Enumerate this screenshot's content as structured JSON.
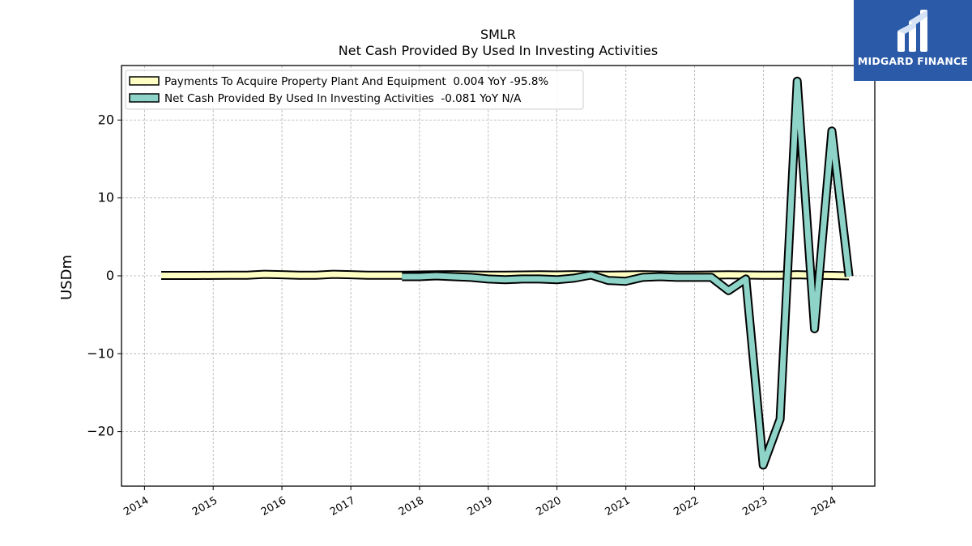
{
  "brand": {
    "name": "MIDGARD FINANCE",
    "bg_color": "#2a5aa8"
  },
  "chart_data": {
    "type": "line",
    "title": "SMLR",
    "subtitle": "Net Cash Provided By Used In Investing Activities",
    "ylabel": "USDm",
    "xlabel": "",
    "xlim": [
      "2013-09-01",
      "2024-08-15"
    ],
    "ylim": [
      -27,
      27
    ],
    "yticks": [
      -20,
      -10,
      0,
      10,
      20
    ],
    "ytick_labels": [
      "−20",
      "−10",
      "0",
      "10",
      "20"
    ],
    "xticks": [
      "2014-01-01",
      "2015-01-01",
      "2016-01-01",
      "2017-01-01",
      "2018-01-01",
      "2019-01-01",
      "2020-01-01",
      "2021-01-01",
      "2022-01-01",
      "2023-01-01",
      "2024-01-01"
    ],
    "xtick_labels": [
      "2014",
      "2015",
      "2016",
      "2017",
      "2018",
      "2019",
      "2020",
      "2021",
      "2022",
      "2023",
      "2024"
    ],
    "grid": true,
    "legend_position": "top-left",
    "series": [
      {
        "name": "Payments To Acquire Property Plant And Equipment  0.004 YoY -95.8%",
        "color": "#ffffc4",
        "points": [
          [
            "2014-03-31",
            0.05
          ],
          [
            "2014-06-30",
            0.05
          ],
          [
            "2014-09-30",
            0.05
          ],
          [
            "2014-12-31",
            0.06
          ],
          [
            "2015-03-31",
            0.07
          ],
          [
            "2015-06-30",
            0.08
          ],
          [
            "2015-09-30",
            0.2
          ],
          [
            "2015-12-31",
            0.15
          ],
          [
            "2016-03-31",
            0.08
          ],
          [
            "2016-06-30",
            0.08
          ],
          [
            "2016-09-30",
            0.2
          ],
          [
            "2016-12-31",
            0.15
          ],
          [
            "2017-03-31",
            0.08
          ],
          [
            "2017-06-30",
            0.08
          ],
          [
            "2017-09-30",
            0.08
          ],
          [
            "2017-12-31",
            0.1
          ],
          [
            "2018-03-31",
            0.12
          ],
          [
            "2018-06-30",
            0.15
          ],
          [
            "2018-09-30",
            0.1
          ],
          [
            "2018-12-31",
            0.08
          ],
          [
            "2019-03-31",
            0.08
          ],
          [
            "2019-06-30",
            0.1
          ],
          [
            "2019-09-30",
            0.12
          ],
          [
            "2019-12-31",
            0.1
          ],
          [
            "2020-03-31",
            0.15
          ],
          [
            "2020-06-30",
            0.1
          ],
          [
            "2020-09-30",
            0.08
          ],
          [
            "2020-12-31",
            0.1
          ],
          [
            "2021-03-31",
            0.15
          ],
          [
            "2021-06-30",
            0.1
          ],
          [
            "2021-09-30",
            0.08
          ],
          [
            "2021-12-31",
            0.08
          ],
          [
            "2022-03-31",
            0.1
          ],
          [
            "2022-06-30",
            0.12
          ],
          [
            "2022-09-30",
            0.1
          ],
          [
            "2022-12-31",
            0.08
          ],
          [
            "2023-03-31",
            0.08
          ],
          [
            "2023-06-30",
            0.15
          ],
          [
            "2023-09-30",
            0.08
          ],
          [
            "2023-12-31",
            0.05
          ],
          [
            "2024-03-31",
            0.004
          ]
        ]
      },
      {
        "name": "Net Cash Provided By Used In Investing Activities  -0.081 YoY N/A",
        "color": "#8dd3c7",
        "points": [
          [
            "2017-09-30",
            -0.1
          ],
          [
            "2017-12-31",
            -0.1
          ],
          [
            "2018-03-31",
            0.0
          ],
          [
            "2018-06-30",
            -0.1
          ],
          [
            "2018-09-30",
            -0.2
          ],
          [
            "2018-12-31",
            -0.4
          ],
          [
            "2019-03-31",
            -0.5
          ],
          [
            "2019-06-30",
            -0.4
          ],
          [
            "2019-09-30",
            -0.4
          ],
          [
            "2019-12-31",
            -0.5
          ],
          [
            "2020-03-31",
            -0.3
          ],
          [
            "2020-06-30",
            0.1
          ],
          [
            "2020-09-30",
            -0.6
          ],
          [
            "2020-12-31",
            -0.7
          ],
          [
            "2021-03-31",
            -0.2
          ],
          [
            "2021-06-30",
            -0.1
          ],
          [
            "2021-09-30",
            -0.2
          ],
          [
            "2021-12-31",
            -0.2
          ],
          [
            "2022-03-31",
            -0.2
          ],
          [
            "2022-06-30",
            -1.9
          ],
          [
            "2022-09-30",
            -0.4
          ],
          [
            "2022-12-31",
            -24.3
          ],
          [
            "2023-03-31",
            -18.4
          ],
          [
            "2023-06-30",
            25.0
          ],
          [
            "2023-09-30",
            -6.8
          ],
          [
            "2023-12-31",
            18.6
          ],
          [
            "2024-03-31",
            -0.081
          ]
        ]
      }
    ]
  }
}
